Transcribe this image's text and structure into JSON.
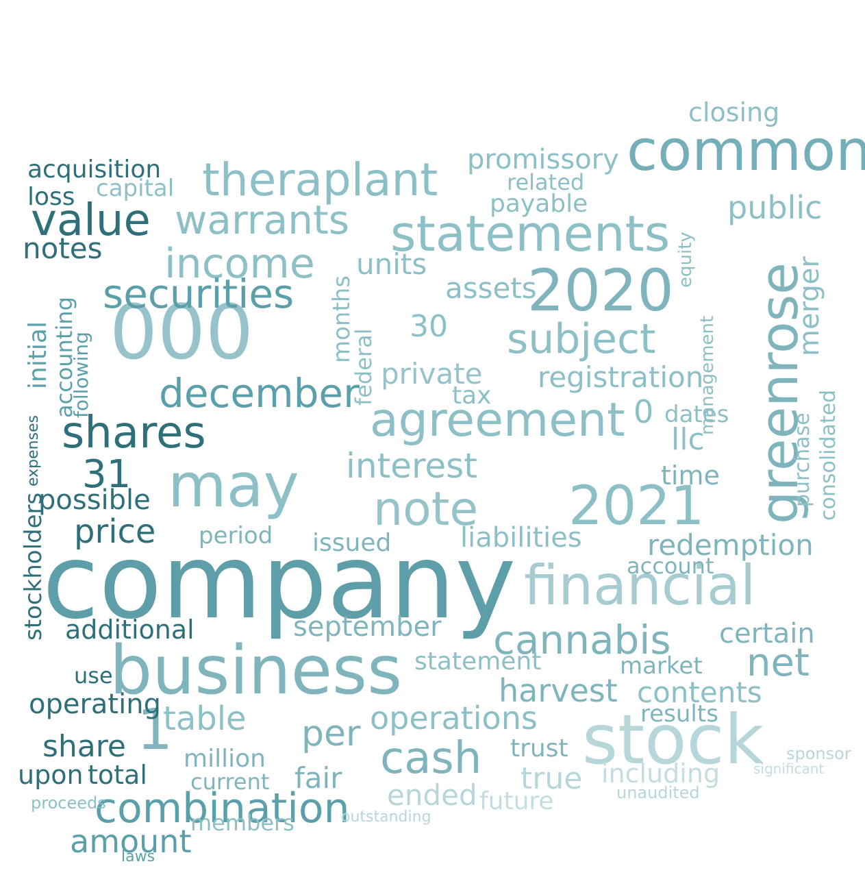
{
  "cloud": {
    "words": [
      "company",
      "business",
      "stock",
      "financial",
      "2020",
      "common",
      "greenrose",
      "000",
      "theraplant",
      "may",
      "2021",
      "agreement",
      "statements",
      "shares",
      "value",
      "warrants",
      "income",
      "securities",
      "december",
      "subject",
      "note",
      "cash",
      "combination",
      "cannabis",
      "net",
      "interest",
      "public",
      "1",
      "31",
      "notes",
      "acquisition",
      "promissory",
      "merger",
      "private",
      "assets",
      "units",
      "30",
      "closing",
      "payable",
      "operations",
      "ended",
      "redemption",
      "harvest",
      "contents",
      "liabilities",
      "table",
      "per",
      "amount",
      "true",
      "certain",
      "future",
      "fair",
      "including",
      "upon",
      "total",
      "share",
      "price",
      "possible",
      "additional",
      "operating",
      "stockholders",
      "september",
      "statement",
      "registration",
      "tax",
      "federal",
      "months",
      "initial",
      "accounting",
      "following",
      "capital",
      "loss",
      "related",
      "time",
      "llc",
      "dates",
      "0",
      "market",
      "trust",
      "million",
      "current",
      "members",
      "period",
      "issued",
      "account",
      "results",
      "unaudited",
      "consolidated",
      "purchase",
      "management",
      "equity",
      "expenses",
      "use",
      "proceeds",
      "outstanding",
      "laws",
      "sponsor",
      "significant"
    ]
  },
  "colors": {
    "teal_dark": "#2e6f7a",
    "teal_mid": "#5a9fa9",
    "teal_light": "#8cbfc6",
    "teal_pale": "#c3dde0"
  }
}
